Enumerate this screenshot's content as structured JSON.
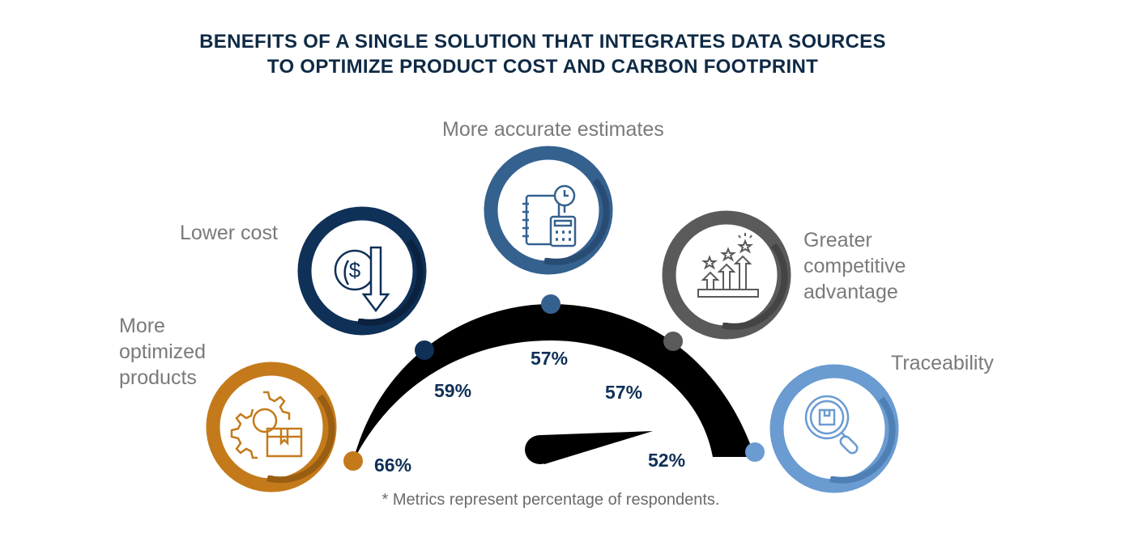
{
  "title": {
    "line1": "BENEFITS OF A SINGLE SOLUTION THAT INTEGRATES DATA SOURCES",
    "line2": "TO OPTIMIZE PRODUCT COST AND CARBON FOOTPRINT"
  },
  "benefits": [
    {
      "label_lines": [
        "More",
        "optimized",
        "products"
      ],
      "value": "66%",
      "color": "#c47a1b",
      "icon": "gear-box-icon"
    },
    {
      "label_lines": [
        "Lower cost"
      ],
      "value": "59%",
      "color": "#0f3057",
      "icon": "dollar-down-icon"
    },
    {
      "label_lines": [
        "More accurate estimates"
      ],
      "value": "57%",
      "color": "#35618f",
      "icon": "notebook-calculator-clock-icon"
    },
    {
      "label_lines": [
        "Greater",
        "competitive",
        "advantage"
      ],
      "value": "57%",
      "color": "#5a5a5a",
      "icon": "stars-arrows-icon"
    },
    {
      "label_lines": [
        "Traceability"
      ],
      "value": "52%",
      "color": "#6a9bd1",
      "icon": "magnifier-box-icon"
    }
  ],
  "footnote": "* Metrics represent percentage of respondents."
}
